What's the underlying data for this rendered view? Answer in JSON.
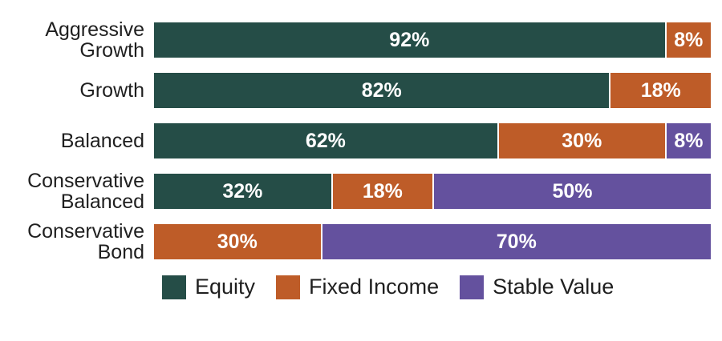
{
  "chart_data": {
    "type": "bar",
    "orientation": "horizontal",
    "stacked": true,
    "title": "",
    "xlabel": "",
    "ylabel": "",
    "xlim": [
      0,
      100
    ],
    "grid": false,
    "legend_position": "bottom",
    "value_suffix": "%",
    "categories": [
      "Aggressive Growth",
      "Growth",
      "Balanced",
      "Conservative Balanced",
      "Conservative Bond"
    ],
    "series": [
      {
        "name": "Equity",
        "color": "#254D47",
        "values": [
          92,
          82,
          62,
          32,
          0
        ]
      },
      {
        "name": "Fixed Income",
        "color": "#BE5C28",
        "values": [
          8,
          18,
          30,
          18,
          30
        ]
      },
      {
        "name": "Stable Value",
        "color": "#64519E",
        "values": [
          0,
          0,
          8,
          50,
          70
        ]
      }
    ]
  },
  "colors": {
    "background": "#ffffff",
    "bar_value_text": "#ffffff",
    "label_text": "#1f1f1f",
    "segment_separator": "#ffffff"
  }
}
